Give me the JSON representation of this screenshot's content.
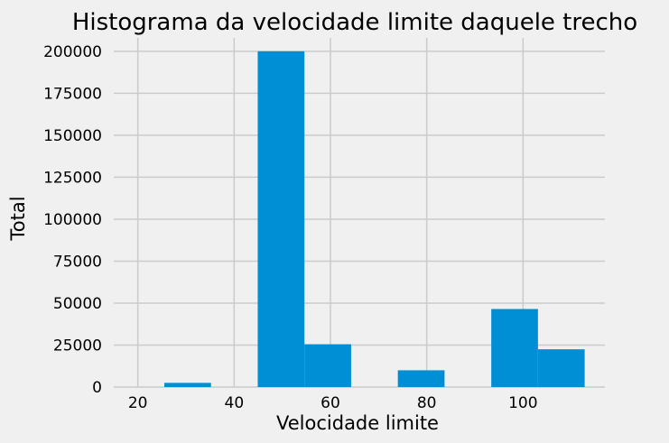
{
  "chart_data": {
    "type": "bar",
    "title": "Histograma da velocidade limite daquele trecho",
    "xlabel": "Velocidade limite",
    "ylabel": "Total",
    "xlim": [
      15,
      117
    ],
    "ylim": [
      0,
      208000
    ],
    "xticks": [
      20,
      40,
      60,
      80,
      100
    ],
    "yticks": [
      0,
      25000,
      50000,
      75000,
      100000,
      125000,
      150000,
      175000,
      200000
    ],
    "grid": true,
    "bar_color": "#008fd5",
    "bins": [
      {
        "x0": 25.5,
        "x1": 35.2,
        "value": 2500
      },
      {
        "x0": 35.2,
        "x1": 44.9,
        "value": 0
      },
      {
        "x0": 44.9,
        "x1": 54.6,
        "value": 200000
      },
      {
        "x0": 54.6,
        "x1": 64.3,
        "value": 25500
      },
      {
        "x0": 64.3,
        "x1": 74.0,
        "value": 0
      },
      {
        "x0": 74.0,
        "x1": 83.7,
        "value": 10000
      },
      {
        "x0": 83.7,
        "x1": 93.4,
        "value": 0
      },
      {
        "x0": 93.4,
        "x1": 103.1,
        "value": 46500
      },
      {
        "x0": 103.1,
        "x1": 112.8,
        "value": 22500
      }
    ]
  }
}
